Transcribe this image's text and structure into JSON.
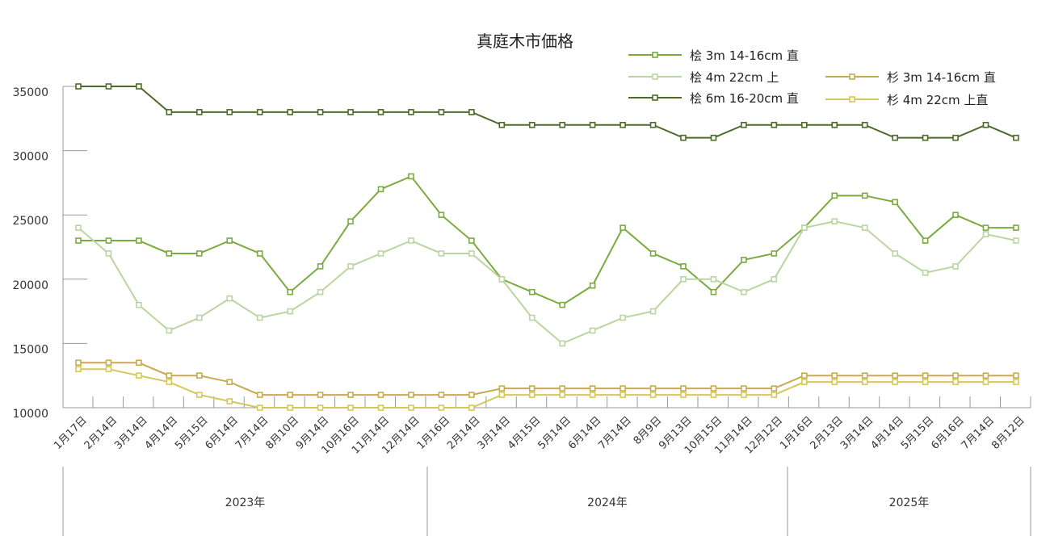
{
  "chart_data": {
    "type": "line",
    "title": "真庭木市価格",
    "xlabel": "",
    "ylabel": "",
    "ylim": [
      10000,
      35000
    ],
    "yticks": [
      "35000",
      "30000",
      "25000",
      "20000",
      "15000",
      "10000"
    ],
    "yticks_values": [
      35000,
      30000,
      25000,
      20000,
      15000,
      10000
    ],
    "grid": false,
    "legend_position": "top-right",
    "categories": [
      "1月17日",
      "2月14日",
      "3月14日",
      "4月14日",
      "5月15日",
      "6月14日",
      "7月14日",
      "8月10日",
      "9月14日",
      "10月16日",
      "11月14日",
      "12月14日",
      "1月16日",
      "2月14日",
      "3月14日",
      "4月15日",
      "5月14日",
      "6月14日",
      "7月14日",
      "8月9日",
      "9月13日",
      "10月15日",
      "11月14日",
      "12月12日",
      "1月16日",
      "2月13日",
      "3月14日",
      "4月14日",
      "5月15日",
      "6月16日",
      "7月14日",
      "8月12日"
    ],
    "years": [
      {
        "label": "2023年",
        "start": 0,
        "end": 11
      },
      {
        "label": "2024年",
        "start": 12,
        "end": 23
      },
      {
        "label": "2025年",
        "start": 24,
        "end": 31
      }
    ],
    "series": [
      {
        "name": "桧 3m 14-16cm 直",
        "color": "#7aab3c",
        "values": [
          23000,
          23000,
          23000,
          22000,
          22000,
          23000,
          22000,
          19000,
          21000,
          24500,
          27000,
          28000,
          25000,
          23000,
          20000,
          19000,
          18000,
          19500,
          24000,
          22000,
          21000,
          19000,
          21500,
          22000,
          24000,
          26500,
          26500,
          26000,
          23000,
          25000,
          24000,
          24000
        ]
      },
      {
        "name": "桧 4m 22cm 上",
        "color": "#b9d6a0",
        "values": [
          24000,
          22000,
          18000,
          16000,
          17000,
          18500,
          17000,
          17500,
          19000,
          21000,
          22000,
          23000,
          22000,
          22000,
          20000,
          17000,
          15000,
          16000,
          17000,
          17500,
          20000,
          20000,
          19000,
          20000,
          24000,
          24500,
          24000,
          22000,
          20500,
          21000,
          23500,
          23000
        ]
      },
      {
        "name": "桧 6m 16-20cm 直",
        "color": "#4d6a2a",
        "values": [
          35000,
          35000,
          35000,
          33000,
          33000,
          33000,
          33000,
          33000,
          33000,
          33000,
          33000,
          33000,
          33000,
          33000,
          32000,
          32000,
          32000,
          32000,
          32000,
          32000,
          31000,
          31000,
          32000,
          32000,
          32000,
          32000,
          32000,
          31000,
          31000,
          31000,
          32000,
          31000
        ]
      },
      {
        "name": "杉 3m 14-16cm 直",
        "color": "#c8aa50",
        "values": [
          13500,
          13500,
          13500,
          12500,
          12500,
          12000,
          11000,
          11000,
          11000,
          11000,
          11000,
          11000,
          11000,
          11000,
          11500,
          11500,
          11500,
          11500,
          11500,
          11500,
          11500,
          11500,
          11500,
          11500,
          12500,
          12500,
          12500,
          12500,
          12500,
          12500,
          12500,
          12500
        ]
      },
      {
        "name": "杉 4m 22cm 上直",
        "color": "#d6c75a",
        "values": [
          13000,
          13000,
          12500,
          12000,
          11000,
          10500,
          10000,
          10000,
          10000,
          10000,
          10000,
          10000,
          10000,
          10000,
          11000,
          11000,
          11000,
          11000,
          11000,
          11000,
          11000,
          11000,
          11000,
          11000,
          12000,
          12000,
          12000,
          12000,
          12000,
          12000,
          12000,
          12000
        ]
      }
    ]
  }
}
